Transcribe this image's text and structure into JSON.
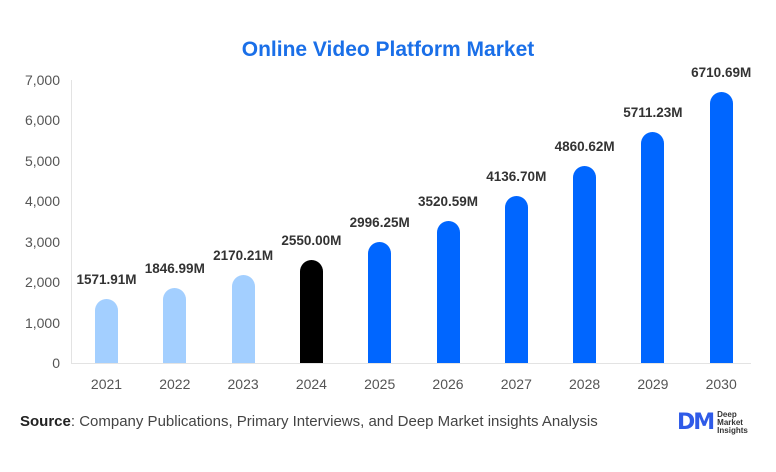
{
  "chart_data": {
    "type": "bar",
    "title": "Online Video Platform Market",
    "categories": [
      "2021",
      "2022",
      "2023",
      "2024",
      "2025",
      "2026",
      "2027",
      "2028",
      "2029",
      "2030"
    ],
    "values": [
      1571.91,
      1846.99,
      2170.21,
      2550.0,
      2996.25,
      3520.59,
      4136.7,
      4860.62,
      5711.23,
      6710.69
    ],
    "value_labels": [
      "1571.91M",
      "1846.99M",
      "2170.21M",
      "2550.00M",
      "2996.25M",
      "3520.59M",
      "4136.70M",
      "4860.62M",
      "5711.23M",
      "6710.69M"
    ],
    "bar_colors": [
      "#a3cfff",
      "#a3cfff",
      "#a3cfff",
      "#000000",
      "#0066ff",
      "#0066ff",
      "#0066ff",
      "#0066ff",
      "#0066ff",
      "#0066ff"
    ],
    "xlabel": "",
    "ylabel": "",
    "ylim": [
      0,
      7000
    ],
    "yticks": [
      "0",
      "1,000",
      "2,000",
      "3,000",
      "4,000",
      "5,000",
      "6,000",
      "7,000"
    ],
    "grid": false,
    "legend": null
  },
  "colors": {
    "title": "#1a6fe8",
    "historic": "#a3cfff",
    "base_year": "#000000",
    "forecast": "#0066ff"
  },
  "footer": {
    "source_label": "Source",
    "source_text": ": Company Publications, Primary Interviews, and Deep Market insights Analysis",
    "logo_mark": "DM",
    "logo_line1": "Deep",
    "logo_line2": "Market",
    "logo_line3": "Insights"
  }
}
